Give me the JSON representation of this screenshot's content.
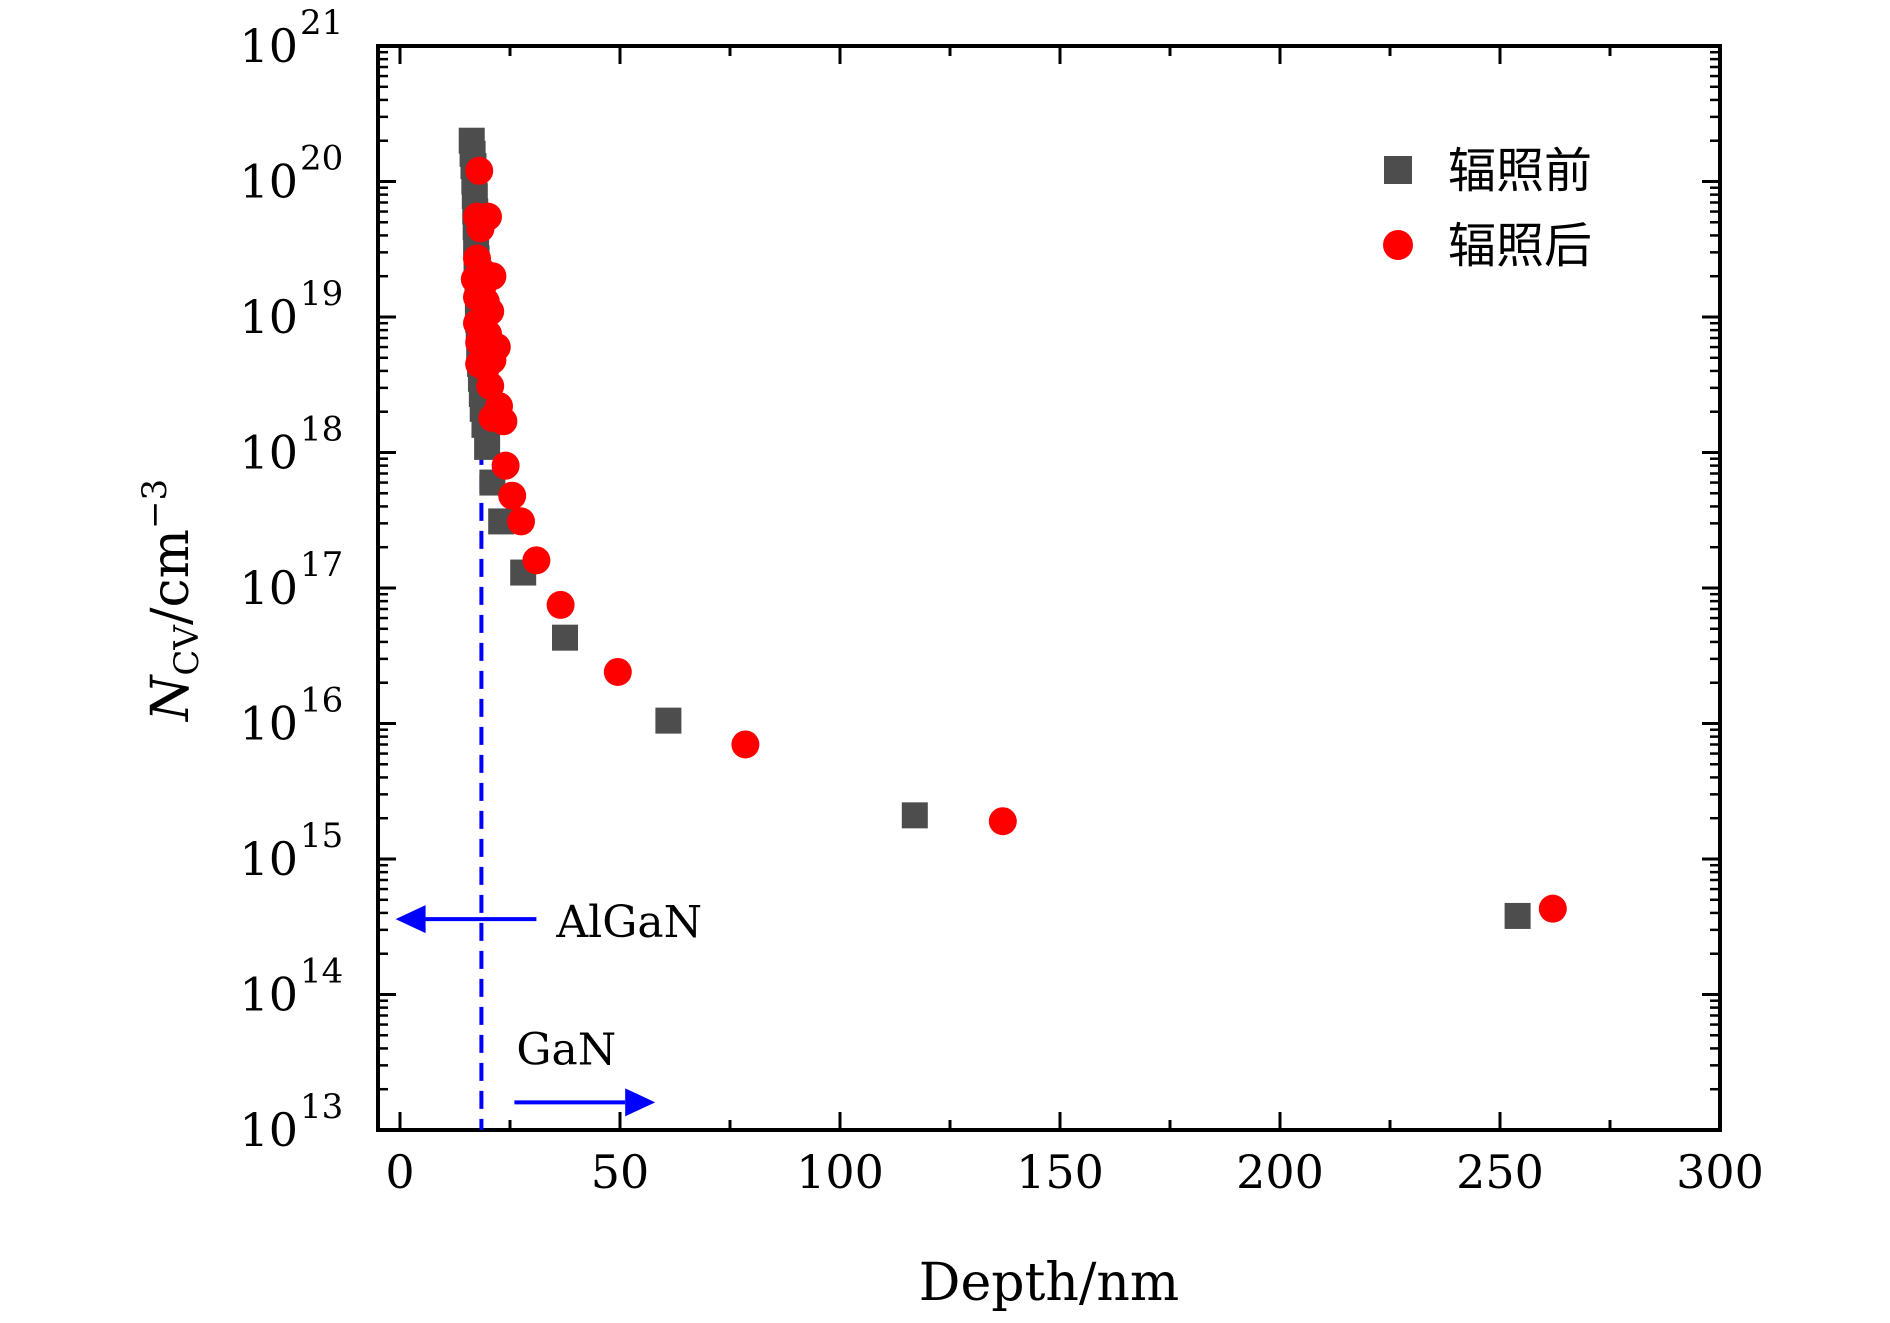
{
  "chart_data": {
    "type": "scatter",
    "xlabel": "Depth/nm",
    "ylabel": {
      "main": "N",
      "sub": "CV",
      "unit": "/cm",
      "exp": "−3"
    },
    "xlim": [
      -5,
      300
    ],
    "ylim_log10": [
      13,
      21
    ],
    "y_scale": "log",
    "x_ticks": [
      0,
      50,
      100,
      150,
      200,
      250,
      300
    ],
    "x_tick_labels": [
      "0",
      "50",
      "100",
      "150",
      "200",
      "250",
      "300"
    ],
    "y_ticks_log10": [
      13,
      14,
      15,
      16,
      17,
      18,
      19,
      20,
      21
    ],
    "y_tick_base": "10",
    "y_tick_exps": [
      "13",
      "14",
      "15",
      "16",
      "17",
      "18",
      "19",
      "20",
      "21"
    ],
    "grid": false,
    "legend_position": "top-right",
    "series": [
      {
        "name": "辐照前",
        "marker": "square",
        "color": "#4d4d4d",
        "points": [
          [
            16.3,
            2e+20
          ],
          [
            16.5,
            1.6e+20
          ],
          [
            16.7,
            1.3e+20
          ],
          [
            16.9,
            1e+20
          ],
          [
            17.0,
            7.8e+19
          ],
          [
            17.1,
            6e+19
          ],
          [
            17.2,
            4.6e+19
          ],
          [
            17.3,
            3.5e+19
          ],
          [
            17.4,
            2.7e+19
          ],
          [
            17.5,
            2.1e+19
          ],
          [
            17.6,
            1.6e+19
          ],
          [
            17.7,
            1.25e+19
          ],
          [
            17.8,
            9.5e+18
          ],
          [
            17.9,
            7.5e+18
          ],
          [
            18.0,
            5.8e+18
          ],
          [
            18.2,
            4.5e+18
          ],
          [
            18.4,
            3.5e+18
          ],
          [
            18.6,
            2.7e+18
          ],
          [
            18.8,
            2.1e+18
          ],
          [
            19.2,
            1.6e+18
          ],
          [
            19.8,
            1.1e+18
          ],
          [
            21.0,
            6e+17
          ],
          [
            23.0,
            3.1e+17
          ],
          [
            28.0,
            1.3e+17
          ],
          [
            37.5,
            4.3e+16
          ],
          [
            61.0,
            1.05e+16
          ],
          [
            117.0,
            2100000000000000.0
          ],
          [
            254.0,
            380000000000000.0
          ]
        ]
      },
      {
        "name": "辐照后",
        "marker": "circle",
        "color": "#ff0000",
        "points": [
          [
            18.0,
            1.2e+20
          ],
          [
            17.5,
            5.5e+19
          ],
          [
            20.0,
            5.5e+19
          ],
          [
            18.3,
            4.5e+19
          ],
          [
            17.5,
            2.7e+19
          ],
          [
            18.5,
            2.2e+19
          ],
          [
            21.0,
            2e+19
          ],
          [
            17.0,
            1.9e+19
          ],
          [
            18.8,
            1.7e+19
          ],
          [
            17.5,
            1.4e+19
          ],
          [
            19.5,
            1.3e+19
          ],
          [
            20.5,
            1.1e+19
          ],
          [
            17.5,
            9e+18
          ],
          [
            19.0,
            8.5e+18
          ],
          [
            20.0,
            7.5e+18
          ],
          [
            18.0,
            6.5e+18
          ],
          [
            22.0,
            6e+18
          ],
          [
            19.5,
            5e+18
          ],
          [
            21.0,
            4.8e+18
          ],
          [
            18.0,
            4.5e+18
          ],
          [
            19.5,
            4.2e+18
          ],
          [
            20.5,
            3.1e+18
          ],
          [
            22.5,
            2.2e+18
          ],
          [
            21.0,
            1.8e+18
          ],
          [
            23.5,
            1.7e+18
          ],
          [
            24.0,
            8e+17
          ],
          [
            25.5,
            4.8e+17
          ],
          [
            27.5,
            3.1e+17
          ],
          [
            31.0,
            1.6e+17
          ],
          [
            36.5,
            7.5e+16
          ],
          [
            49.5,
            2.4e+16
          ],
          [
            78.5,
            7000000000000000.0
          ],
          [
            137.0,
            1900000000000000.0
          ],
          [
            262.0,
            430000000000000.0
          ]
        ]
      }
    ],
    "annotations": {
      "interface_x": 18.5,
      "interface_color": "#0000ff",
      "algan_label": "AlGaN",
      "gan_label": "GaN",
      "algan_arrow": {
        "from_x": 31,
        "to_x": -1,
        "y": 360000000000000.0
      },
      "gan_arrow": {
        "from_x": 26,
        "to_x": 58,
        "y": 16000000000000.0
      }
    }
  }
}
